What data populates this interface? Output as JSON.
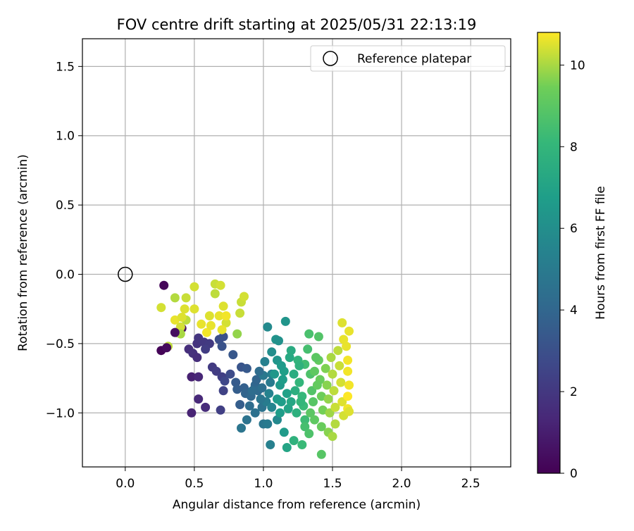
{
  "chart_data": {
    "type": "scatter",
    "title": "FOV centre drift starting at 2025/05/31 22:13:19",
    "xlabel": "Angular distance from reference (arcmin)",
    "ylabel": "Rotation from reference (arcmin)",
    "xlim": [
      -0.31,
      2.79
    ],
    "ylim": [
      -1.39,
      1.7
    ],
    "xticks": [
      0.0,
      0.5,
      1.0,
      1.5,
      2.0,
      2.5
    ],
    "xtick_labels": [
      "0.0",
      "0.5",
      "1.0",
      "1.5",
      "2.0",
      "2.5"
    ],
    "yticks": [
      -1.0,
      -0.5,
      0.0,
      0.5,
      1.0,
      1.5
    ],
    "ytick_labels": [
      "−1.0",
      "−0.5",
      "0.0",
      "0.5",
      "1.0",
      "1.5"
    ],
    "grid": true,
    "legend": {
      "position": "top-right",
      "entries": [
        "Reference platepar"
      ]
    },
    "reference_point": {
      "x": 0.0,
      "y": 0.0,
      "marker": "open-circle"
    },
    "colorbar": {
      "label": "Hours from first FF file",
      "range": [
        0,
        10.8
      ],
      "ticks": [
        0,
        2,
        4,
        6,
        8,
        10
      ],
      "tick_labels": [
        "0",
        "2",
        "4",
        "6",
        "8",
        "10"
      ],
      "colormap": "viridis"
    },
    "points": [
      [
        0.28,
        -0.08,
        0.2
      ],
      [
        0.26,
        -0.55,
        0.1
      ],
      [
        0.37,
        -0.42,
        0.3
      ],
      [
        0.41,
        -0.39,
        0.5
      ],
      [
        0.48,
        -0.74,
        1.1
      ],
      [
        0.48,
        -1.0,
        1.2
      ],
      [
        0.53,
        -0.74,
        1.3
      ],
      [
        0.53,
        -0.9,
        1.4
      ],
      [
        0.58,
        -0.96,
        1.5
      ],
      [
        0.46,
        -0.54,
        1.6
      ],
      [
        0.49,
        -0.57,
        1.7
      ],
      [
        0.52,
        -0.6,
        1.6
      ],
      [
        0.52,
        -0.5,
        1.8
      ],
      [
        0.53,
        -0.46,
        1.9
      ],
      [
        0.57,
        -0.49,
        2.0
      ],
      [
        0.61,
        -0.5,
        2.1
      ],
      [
        0.58,
        -0.54,
        2.2
      ],
      [
        0.63,
        -0.67,
        2.1
      ],
      [
        0.66,
        -0.7,
        2.2
      ],
      [
        0.7,
        -0.74,
        2.3
      ],
      [
        0.71,
        -0.84,
        2.4
      ],
      [
        0.69,
        -0.98,
        2.3
      ],
      [
        0.72,
        -0.77,
        2.6
      ],
      [
        0.76,
        -0.72,
        2.8
      ],
      [
        0.68,
        -0.47,
        2.9
      ],
      [
        0.71,
        -0.45,
        3.0
      ],
      [
        0.7,
        -0.52,
        3.1
      ],
      [
        0.78,
        -0.58,
        3.3
      ],
      [
        0.8,
        -0.78,
        3.5
      ],
      [
        0.81,
        -0.83,
        3.6
      ],
      [
        0.84,
        -0.67,
        3.2
      ],
      [
        0.88,
        -0.68,
        3.4
      ],
      [
        0.86,
        -0.82,
        3.7
      ],
      [
        0.83,
        -0.94,
        3.6
      ],
      [
        0.87,
        -0.86,
        3.9
      ],
      [
        0.91,
        -0.88,
        4.1
      ],
      [
        0.94,
        -0.8,
        4.0
      ],
      [
        0.95,
        -0.76,
        3.9
      ],
      [
        0.96,
        -0.84,
        4.2
      ],
      [
        0.99,
        -0.82,
        4.4
      ],
      [
        0.9,
        -0.95,
        4.3
      ],
      [
        0.94,
        -1.0,
        4.5
      ],
      [
        0.88,
        -1.05,
        4.6
      ],
      [
        0.84,
        -1.11,
        4.7
      ],
      [
        0.99,
        -0.96,
        4.6
      ],
      [
        1.0,
        -1.08,
        4.8
      ],
      [
        1.03,
        -1.08,
        5.0
      ],
      [
        1.02,
        -0.92,
        5.1
      ],
      [
        1.05,
        -0.78,
        5.0
      ],
      [
        1.0,
        -0.73,
        4.9
      ],
      [
        1.06,
        -0.72,
        5.2
      ],
      [
        1.01,
        -0.63,
        5.3
      ],
      [
        1.04,
        -0.86,
        5.4
      ],
      [
        1.06,
        -0.96,
        5.5
      ],
      [
        1.05,
        -1.23,
        5.3
      ],
      [
        1.1,
        -1.05,
        5.7
      ],
      [
        1.03,
        -0.38,
        5.8
      ],
      [
        1.06,
        -0.56,
        6.0
      ],
      [
        1.09,
        -0.47,
        6.2
      ],
      [
        1.11,
        -0.48,
        6.1
      ],
      [
        1.1,
        -0.62,
        6.3
      ],
      [
        1.08,
        -0.72,
        6.4
      ],
      [
        1.12,
        -0.8,
        6.5
      ],
      [
        1.1,
        -0.9,
        6.6
      ],
      [
        1.12,
        -1.0,
        6.7
      ],
      [
        1.15,
        -1.14,
        6.6
      ],
      [
        1.16,
        -0.34,
        6.3
      ],
      [
        1.15,
        -0.7,
        6.8
      ],
      [
        1.17,
        -0.86,
        6.9
      ],
      [
        1.18,
        -0.97,
        7.0
      ],
      [
        1.17,
        -1.25,
        7.1
      ],
      [
        1.2,
        -0.92,
        7.2
      ],
      [
        1.19,
        -0.6,
        7.3
      ],
      [
        1.2,
        -0.55,
        7.4
      ],
      [
        1.22,
        -0.72,
        7.5
      ],
      [
        1.23,
        -0.84,
        7.6
      ],
      [
        1.24,
        -1.0,
        7.7
      ],
      [
        1.22,
        -1.2,
        7.8
      ],
      [
        1.25,
        -0.62,
        7.9
      ],
      [
        1.26,
        -0.78,
        8.0
      ],
      [
        1.28,
        -0.88,
        8.1
      ],
      [
        1.29,
        -0.95,
        8.2
      ],
      [
        1.3,
        -1.05,
        8.3
      ],
      [
        1.28,
        -1.23,
        8.2
      ],
      [
        1.3,
        -0.65,
        8.4
      ],
      [
        1.32,
        -0.54,
        8.5
      ],
      [
        1.33,
        -0.43,
        8.6
      ],
      [
        1.34,
        -0.72,
        8.7
      ],
      [
        1.35,
        -0.84,
        8.8
      ],
      [
        1.36,
        -0.92,
        8.9
      ],
      [
        1.34,
        -1.0,
        9.0
      ],
      [
        1.37,
        -1.05,
        9.1
      ],
      [
        1.3,
        -1.1,
        8.5
      ],
      [
        1.33,
        -1.15,
        8.7
      ],
      [
        1.4,
        -0.45,
        8.8
      ],
      [
        1.4,
        -0.62,
        9.2
      ],
      [
        1.41,
        -0.76,
        9.3
      ],
      [
        1.42,
        -0.88,
        9.4
      ],
      [
        1.43,
        -0.98,
        9.5
      ],
      [
        1.42,
        -1.1,
        9.3
      ],
      [
        1.42,
        -1.3,
        8.9
      ],
      [
        1.45,
        -0.68,
        9.6
      ],
      [
        1.46,
        -0.8,
        9.7
      ],
      [
        1.47,
        -0.9,
        9.8
      ],
      [
        1.48,
        -1.0,
        9.9
      ],
      [
        1.47,
        -1.14,
        9.7
      ],
      [
        1.49,
        -0.6,
        10.0
      ],
      [
        1.5,
        -0.72,
        10.1
      ],
      [
        1.51,
        -0.84,
        10.2
      ],
      [
        1.52,
        -0.96,
        10.3
      ],
      [
        1.52,
        -1.08,
        10.1
      ],
      [
        1.5,
        -1.17,
        10.0
      ],
      [
        1.54,
        -0.55,
        10.2
      ],
      [
        1.55,
        -0.66,
        10.3
      ],
      [
        1.56,
        -0.78,
        10.4
      ],
      [
        1.57,
        -0.92,
        10.5
      ],
      [
        1.58,
        -1.02,
        10.4
      ],
      [
        1.57,
        -0.35,
        10.5
      ],
      [
        1.58,
        -0.47,
        10.6
      ],
      [
        1.6,
        -0.52,
        10.6
      ],
      [
        1.61,
        -0.62,
        10.7
      ],
      [
        1.61,
        -0.7,
        10.7
      ],
      [
        1.62,
        -0.8,
        10.7
      ],
      [
        1.61,
        -0.88,
        10.8
      ],
      [
        1.61,
        -0.97,
        10.7
      ],
      [
        1.62,
        -0.41,
        10.6
      ],
      [
        1.62,
        -0.99,
        10.5
      ],
      [
        1.38,
        -0.6,
        9.0
      ],
      [
        1.37,
        -0.7,
        9.1
      ],
      [
        1.39,
        -0.8,
        9.2
      ],
      [
        1.26,
        -0.66,
        7.8
      ],
      [
        1.27,
        -0.92,
        8.0
      ],
      [
        1.13,
        -0.66,
        6.6
      ],
      [
        1.14,
        -0.76,
        6.7
      ],
      [
        1.13,
        -0.92,
        6.7
      ],
      [
        0.98,
        -0.9,
        4.8
      ],
      [
        0.92,
        -0.84,
        4.3
      ],
      [
        0.97,
        -0.7,
        4.3
      ],
      [
        0.26,
        -0.24,
        10.4
      ],
      [
        0.36,
        -0.17,
        10.1
      ],
      [
        0.44,
        -0.17,
        10.3
      ],
      [
        0.5,
        -0.09,
        10.4
      ],
      [
        0.31,
        -0.52,
        10.2
      ],
      [
        0.36,
        -0.33,
        10.6
      ],
      [
        0.4,
        -0.38,
        10.4
      ],
      [
        0.43,
        -0.25,
        10.5
      ],
      [
        0.44,
        -0.33,
        10.2
      ],
      [
        0.4,
        -0.43,
        10.0
      ],
      [
        0.41,
        -0.31,
        10.5
      ],
      [
        0.5,
        -0.25,
        10.5
      ],
      [
        0.55,
        -0.36,
        10.6
      ],
      [
        0.59,
        -0.42,
        10.7
      ],
      [
        0.61,
        -0.3,
        10.5
      ],
      [
        0.62,
        -0.37,
        10.6
      ],
      [
        0.65,
        -0.14,
        10.2
      ],
      [
        0.65,
        -0.07,
        10.3
      ],
      [
        0.69,
        -0.08,
        10.4
      ],
      [
        0.68,
        -0.3,
        10.6
      ],
      [
        0.71,
        -0.23,
        10.5
      ],
      [
        0.73,
        -0.35,
        10.4
      ],
      [
        0.7,
        -0.4,
        10.6
      ],
      [
        0.73,
        -0.3,
        10.7
      ],
      [
        0.81,
        -0.43,
        9.8
      ],
      [
        0.84,
        -0.2,
        10.3
      ],
      [
        0.86,
        -0.16,
        10.4
      ],
      [
        0.83,
        -0.28,
        10.3
      ],
      [
        0.3,
        -0.53,
        0.3
      ],
      [
        0.36,
        -0.42,
        0.4
      ]
    ]
  }
}
